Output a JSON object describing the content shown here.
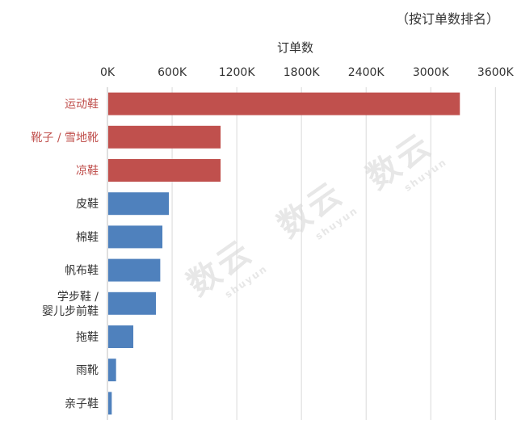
{
  "caption": "（按订单数排名）",
  "watermark": {
    "cn": "数云",
    "en": "shuyun"
  },
  "chart_data": {
    "type": "bar",
    "orientation": "horizontal",
    "title": "",
    "xlabel": "订单数",
    "ylabel": "",
    "xlim": [
      0,
      3800000
    ],
    "xticks": [
      0,
      600000,
      1200000,
      1800000,
      2400000,
      3000000,
      3600000
    ],
    "xtick_labels": [
      "0K",
      "600K",
      "1200K",
      "1800K",
      "2400K",
      "3000K",
      "3600K"
    ],
    "grid": "vertical",
    "categories": [
      "运动鞋",
      "靴子 / 雪地靴",
      "凉鞋",
      "皮鞋",
      "棉鞋",
      "帆布鞋",
      "学步鞋 / 婴儿步前鞋",
      "拖鞋",
      "雨靴",
      "亲子鞋"
    ],
    "category_lines": [
      [
        "运动鞋"
      ],
      [
        "靴子 / 雪地靴"
      ],
      [
        "凉鞋"
      ],
      [
        "皮鞋"
      ],
      [
        "棉鞋"
      ],
      [
        "帆布鞋"
      ],
      [
        "学步鞋 /",
        "婴儿步前鞋"
      ],
      [
        "拖鞋"
      ],
      [
        "雨靴"
      ],
      [
        "亲子鞋"
      ]
    ],
    "values": [
      3270000,
      1050000,
      1050000,
      570000,
      510000,
      490000,
      450000,
      240000,
      80000,
      40000
    ],
    "highlight": [
      true,
      true,
      true,
      false,
      false,
      false,
      false,
      false,
      false,
      false
    ],
    "colors": {
      "highlight": "#c0504d",
      "normal": "#4f81bd",
      "highlight_label": "#c0504d",
      "normal_label": "#333333",
      "grid": "#d9d9d9",
      "axis": "#bfbfbf"
    }
  }
}
